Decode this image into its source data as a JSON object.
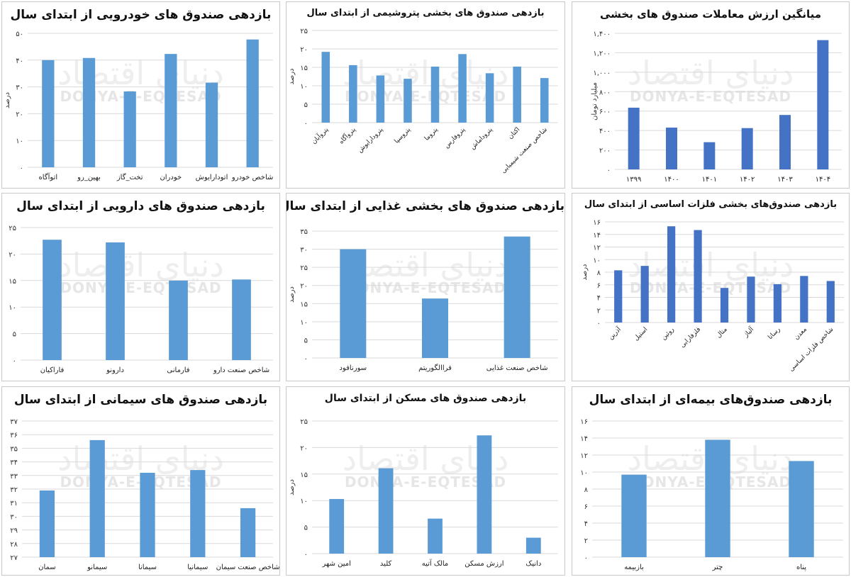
{
  "watermark": {
    "latin": "DONYA-E-EQTESAD",
    "persian": "دنیای اقتصاد"
  },
  "chart_data": [
    {
      "type": "bar",
      "title": "بازدهی صندوق های خودرویی از ابتدای سال",
      "ylabel": "درصد",
      "color": "#5b9bd5",
      "categories": [
        "اتوآگاه",
        "بهین_رو",
        "تخت_گاز",
        "خودران",
        "اتودارایوش",
        "شاخص خودرو"
      ],
      "values": [
        40,
        40.8,
        28.3,
        42.3,
        31.6,
        47.7
      ],
      "ylim": [
        0,
        50
      ],
      "yticks": [
        "۰",
        "۱۰",
        "۲۰",
        "۳۰",
        "۴۰",
        "۵۰"
      ]
    },
    {
      "type": "bar",
      "title": "بازدهی صندوق های بخشی پتروشیمی از ابتدای سال",
      "ylabel": "درصد",
      "color": "#5b9bd5",
      "categories": [
        "پتروآبان",
        "پتروآگاه",
        "پترودارایوش",
        "پتروسپا",
        "پتروما",
        "پتروفارس",
        "پتروداماش",
        "اکتان",
        "شاخص صنعت شیمیایی"
      ],
      "values": [
        19.2,
        15.6,
        12.8,
        11.9,
        15.2,
        18.6,
        13.4,
        15.2,
        12.1
      ],
      "ylim": [
        0,
        25
      ],
      "yticks": [
        "۰",
        "۵",
        "۱۰",
        "۱۵",
        "۲۰",
        "۲۵"
      ]
    },
    {
      "type": "bar",
      "title": "میانگین ارزش معاملات صندوق های بخشی",
      "ylabel": "میلیارد تومان",
      "color": "#4472c4",
      "categories": [
        "۱۳۹۹",
        "۱۴۰۰",
        "۱۴۰۱",
        "۱۴۰۲",
        "۱۴۰۳",
        "۱۴۰۴"
      ],
      "values": [
        635,
        430,
        280,
        425,
        560,
        1330
      ],
      "ylim": [
        0,
        1400
      ],
      "yticks": [
        "۰",
        "۲۰۰",
        "۴۰۰",
        "۶۰۰",
        "۸۰۰",
        "۱,۰۰۰",
        "۱,۲۰۰",
        "۱,۴۰۰"
      ]
    },
    {
      "type": "bar",
      "title": "بازدهی صندوق های دارویی از ابتدای سال",
      "ylabel": "",
      "color": "#5b9bd5",
      "categories": [
        "فاراکیان",
        "دارونو",
        "فارمانی",
        "شاخص صنعت دارو"
      ],
      "values": [
        22.7,
        22.2,
        15,
        15.2
      ],
      "ylim": [
        0,
        25
      ],
      "yticks": [
        "۰",
        "۵",
        "۱۰",
        "۱۵",
        "۲۰",
        "۲۵"
      ]
    },
    {
      "type": "bar",
      "title": "بازدهی صندوق های بخشی غذایی از ابتدای سال",
      "ylabel": "درصد",
      "color": "#5b9bd5",
      "categories": [
        "سورنافود",
        "فراالگوریتم",
        "شاخص صنعت غذایی"
      ],
      "values": [
        30,
        16.4,
        33.5
      ],
      "ylim": [
        0,
        35
      ],
      "yticks": [
        "۰",
        "۵",
        "۱۰",
        "۱۵",
        "۲۰",
        "۲۵",
        "۳۰",
        "۳۵"
      ]
    },
    {
      "type": "bar",
      "title": "بازدهی صندوق‌های بخشی فلزات اساسی از ابتدای سال",
      "ylabel": "درصد",
      "color": "#4472c4",
      "categories": [
        "آذرین",
        "استیل",
        "روئین",
        "فلزفارابی",
        "متال",
        "آلیاژ",
        "رساتا",
        "معدن",
        "شاخص فلزات اساسی"
      ],
      "values": [
        8.3,
        9,
        15.3,
        14.7,
        5.5,
        7.3,
        6.1,
        7.4,
        6.6
      ],
      "ylim": [
        0,
        16
      ],
      "yticks": [
        "۰",
        "۲",
        "۴",
        "۶",
        "۸",
        "۱۰",
        "۱۲",
        "۱۴",
        "۱۶"
      ]
    },
    {
      "type": "bar",
      "title": "بازدهی صندوق های سیمانی از ابتدای سال",
      "ylabel": "",
      "color": "#5b9bd5",
      "categories": [
        "سمان",
        "سیمانو",
        "سیمانا",
        "سیمانیا",
        "شاخص صنعت سیمان"
      ],
      "values": [
        31.9,
        35.6,
        33.2,
        33.4,
        30.6
      ],
      "ylim": [
        27,
        37
      ],
      "yticks": [
        "۲۷",
        "۲۸",
        "۲۹",
        "۳۰",
        "۳۱",
        "۳۲",
        "۳۳",
        "۳۴",
        "۳۵",
        "۳۶",
        "۳۷"
      ]
    },
    {
      "type": "bar",
      "title": "بازدهی صندوق های مسکن از ابتدای سال",
      "ylabel": "درصد",
      "color": "#5b9bd5",
      "categories": [
        "امین شهر",
        "کلید",
        "مالک آتیه",
        "ارزش مسکن",
        "دانیک"
      ],
      "values": [
        10.3,
        16.1,
        6.6,
        22.3,
        3
      ],
      "ylim": [
        0,
        25
      ],
      "yticks": [
        "۰",
        "۵",
        "۱۰",
        "۱۵",
        "۲۰",
        "۲۵"
      ]
    },
    {
      "type": "bar",
      "title": "بازدهی صندوق‌های بیمه‌ای از ابتدای سال",
      "ylabel": "",
      "color": "#5b9bd5",
      "categories": [
        "بازبیمه",
        "چتر",
        "پناه"
      ],
      "values": [
        9.7,
        13.8,
        11.3
      ],
      "ylim": [
        0,
        16
      ],
      "yticks": [
        "۰",
        "۲",
        "۴",
        "۶",
        "۸",
        "۱۰",
        "۱۲",
        "۱۴",
        "۱۶"
      ]
    }
  ]
}
